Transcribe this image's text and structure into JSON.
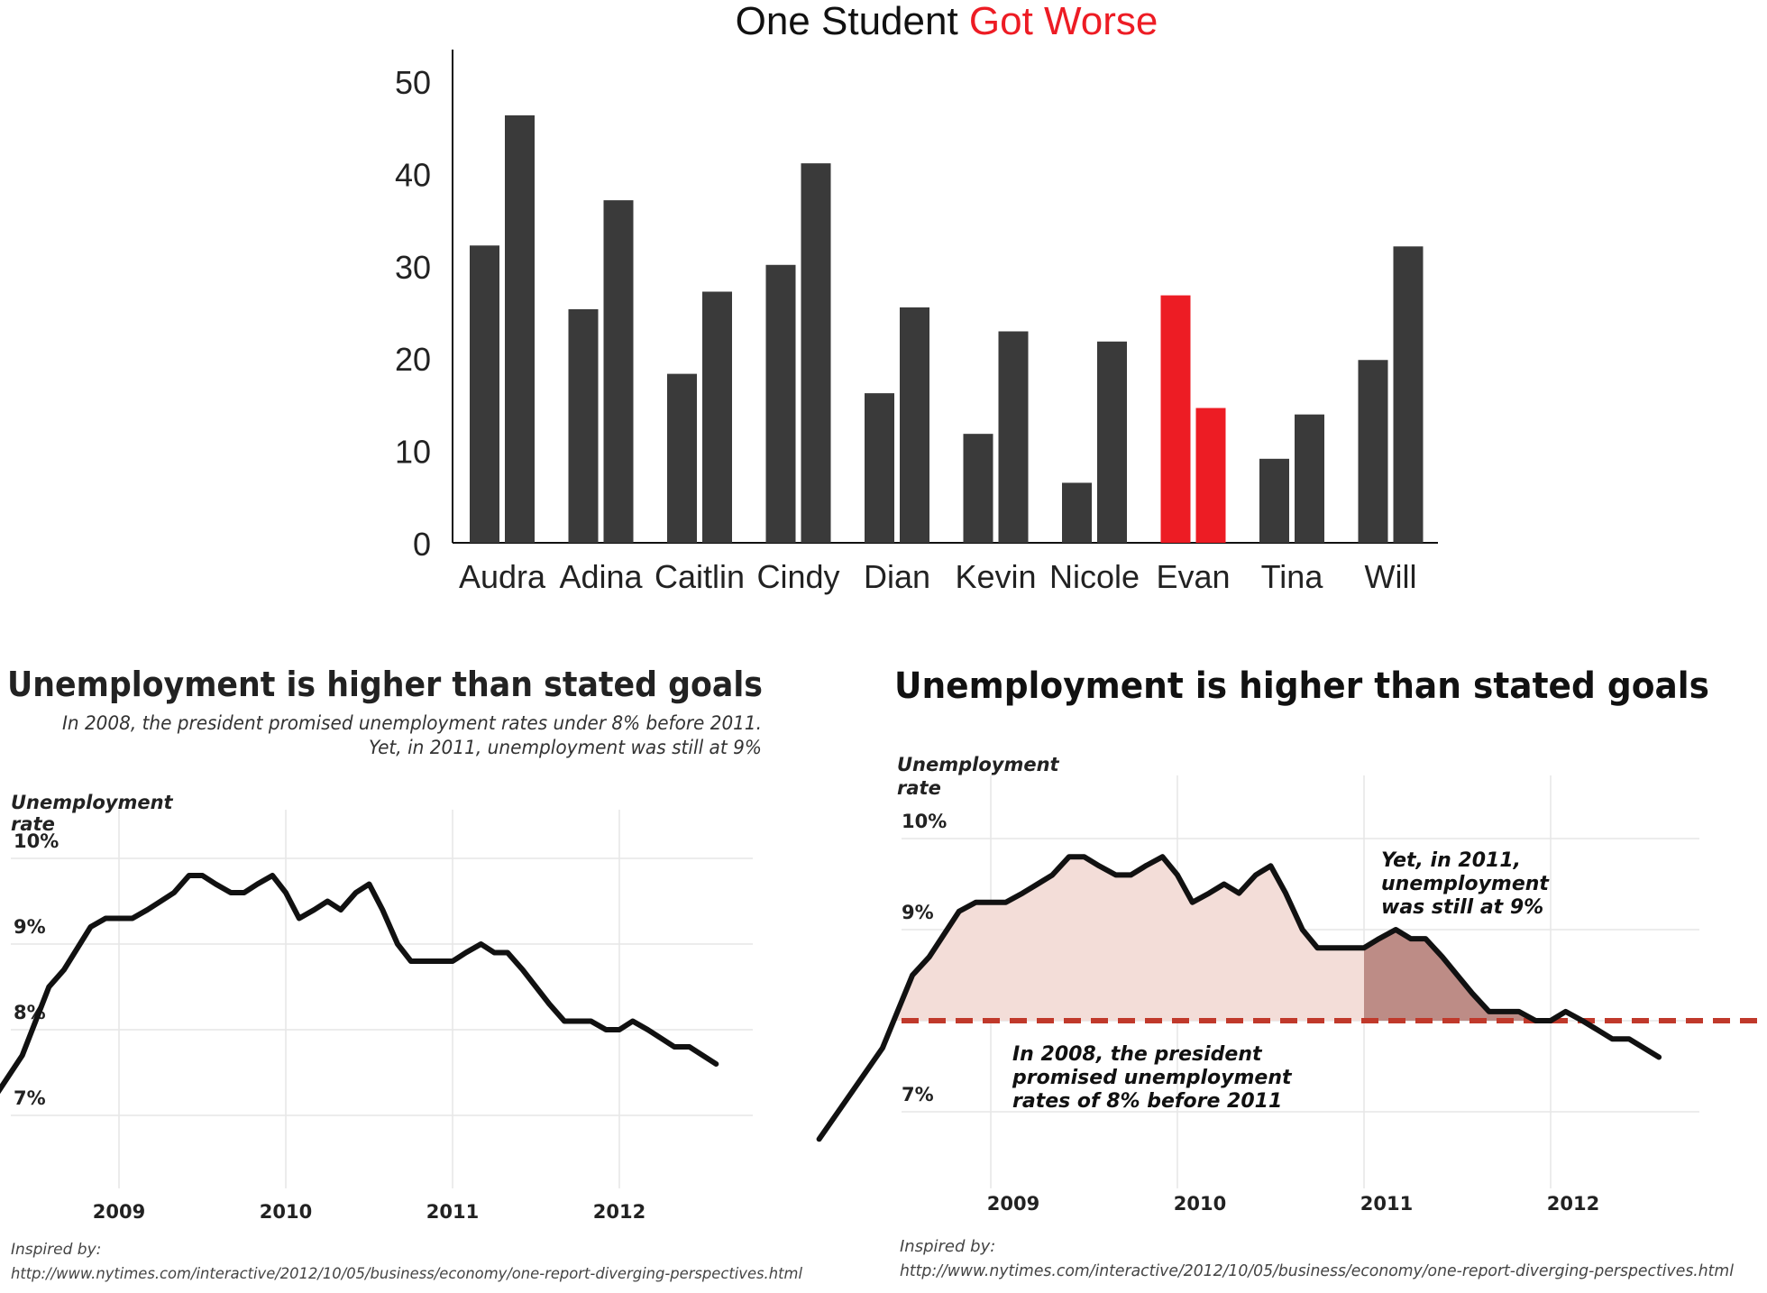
{
  "chart_data": [
    {
      "type": "bar",
      "title": "One Student ",
      "title_highlight": "Got Worse",
      "highlight_color": "#ed1c24",
      "bar_color": "#3a3a3a",
      "ylim": [
        0,
        50
      ],
      "y_ticks": [
        "0",
        "10",
        "20",
        "30",
        "40",
        "50"
      ],
      "legend": "none",
      "grid": false,
      "categories": [
        "Audra",
        "Adina",
        "Caitlin",
        "Cindy",
        "Dian",
        "Kevin",
        "Nicole",
        "Evan",
        "Tina",
        "Will"
      ],
      "series": [
        {
          "values": [
            32.2,
            25.3,
            18.3,
            30.1,
            16.2,
            11.8,
            6.5,
            26.8,
            9.1,
            19.8
          ]
        },
        {
          "values": [
            46.3,
            37.1,
            27.2,
            41.1,
            25.5,
            22.9,
            21.8,
            14.6,
            13.9,
            32.1
          ]
        }
      ],
      "highlight_category": "Evan"
    },
    {
      "type": "line",
      "title": "Unemployment is higher than stated goals",
      "subtitle_lines": [
        "In 2008, the president promised unemployment rates under 8% before 2011.",
        "Yet, in 2011, unemployment was still at 9%"
      ],
      "ylabel_lines": [
        "Unemployment",
        "rate"
      ],
      "y_ticks": [
        "7%",
        "8%",
        "9%",
        "10%"
      ],
      "x_ticks": [
        "2009",
        "2010",
        "2011",
        "2012"
      ],
      "ylim": [
        6.5,
        10.3
      ],
      "xlim": [
        2008.0,
        2013.0
      ],
      "grid": true,
      "line_color": "#111111",
      "x": [
        2008.08,
        2008.42,
        2008.5,
        2008.58,
        2008.67,
        2008.83,
        2008.92,
        2009.08,
        2009.17,
        2009.25,
        2009.33,
        2009.42,
        2009.5,
        2009.58,
        2009.67,
        2009.75,
        2009.83,
        2009.92,
        2010.0,
        2010.08,
        2010.17,
        2010.25,
        2010.33,
        2010.42,
        2010.5,
        2010.58,
        2010.67,
        2010.75,
        2010.83,
        2010.92,
        2011.0,
        2011.08,
        2011.17,
        2011.25,
        2011.33,
        2011.42,
        2011.5,
        2011.58,
        2011.67,
        2011.75,
        2011.83,
        2011.92,
        2012.0,
        2012.08,
        2012.17,
        2012.25,
        2012.33,
        2012.42,
        2012.58
      ],
      "y": [
        6.7,
        7.7,
        8.1,
        8.5,
        8.7,
        9.2,
        9.3,
        9.3,
        9.4,
        9.5,
        9.6,
        9.8,
        9.8,
        9.7,
        9.6,
        9.6,
        9.7,
        9.8,
        9.6,
        9.3,
        9.4,
        9.5,
        9.4,
        9.6,
        9.7,
        9.4,
        9.0,
        8.8,
        8.8,
        8.8,
        8.8,
        8.9,
        9.0,
        8.9,
        8.9,
        8.7,
        8.5,
        8.3,
        8.1,
        8.1,
        8.1,
        8.0,
        8.0,
        8.1,
        8.0,
        7.9,
        7.8,
        7.8,
        7.6
      ],
      "source_label": "Inspired by:",
      "source_url": "http://www.nytimes.com/interactive/2012/10/05/business/economy/one-report-diverging-perspectives.html"
    },
    {
      "type": "area",
      "title": "Unemployment is higher than stated goals",
      "ylabel_lines": [
        "Unemployment",
        "rate"
      ],
      "y_ticks": [
        "7%",
        "8%",
        "9%",
        "10%"
      ],
      "x_ticks": [
        "2009",
        "2010",
        "2011",
        "2012"
      ],
      "ylim": [
        6.5,
        10.3
      ],
      "xlim": [
        2008.0,
        2013.0
      ],
      "grid": true,
      "line_color": "#111111",
      "goal_line": {
        "value": 8.0,
        "color": "#c0392b"
      },
      "fill_before_2011": "#f3ddd8",
      "fill_after_2011": "#bd8c86",
      "x": [
        2008.08,
        2008.42,
        2008.5,
        2008.58,
        2008.67,
        2008.83,
        2008.92,
        2009.08,
        2009.17,
        2009.25,
        2009.33,
        2009.42,
        2009.5,
        2009.58,
        2009.67,
        2009.75,
        2009.83,
        2009.92,
        2010.0,
        2010.08,
        2010.17,
        2010.25,
        2010.33,
        2010.42,
        2010.5,
        2010.58,
        2010.67,
        2010.75,
        2010.83,
        2010.92,
        2011.0,
        2011.08,
        2011.17,
        2011.25,
        2011.33,
        2011.42,
        2011.5,
        2011.58,
        2011.67,
        2011.75,
        2011.83,
        2011.92,
        2012.0,
        2012.08,
        2012.17,
        2012.25,
        2012.33,
        2012.42,
        2012.58
      ],
      "y": [
        6.7,
        7.7,
        8.1,
        8.5,
        8.7,
        9.2,
        9.3,
        9.3,
        9.4,
        9.5,
        9.6,
        9.8,
        9.8,
        9.7,
        9.6,
        9.6,
        9.7,
        9.8,
        9.6,
        9.3,
        9.4,
        9.5,
        9.4,
        9.6,
        9.7,
        9.4,
        9.0,
        8.8,
        8.8,
        8.8,
        8.8,
        8.9,
        9.0,
        8.9,
        8.9,
        8.7,
        8.5,
        8.3,
        8.1,
        8.1,
        8.1,
        8.0,
        8.0,
        8.1,
        8.0,
        7.9,
        7.8,
        7.8,
        7.6
      ],
      "annotation_2011_lines": [
        "Yet, in 2011,",
        "unemployment",
        "was still at 9%"
      ],
      "annotation_2008_lines": [
        "In 2008, the president",
        "promised unemployment",
        "rates of 8% before 2011"
      ],
      "source_label": "Inspired by:",
      "source_url": "http://www.nytimes.com/interactive/2012/10/05/business/economy/one-report-diverging-perspectives.html"
    }
  ]
}
